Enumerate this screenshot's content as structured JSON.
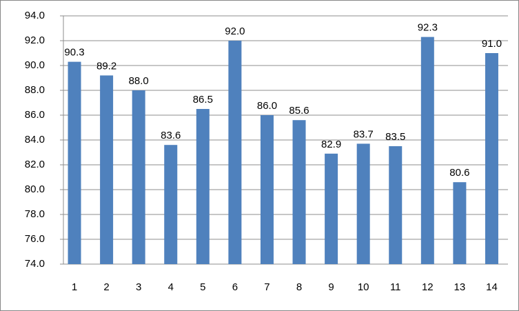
{
  "chart_data": {
    "type": "bar",
    "categories": [
      "1",
      "2",
      "3",
      "4",
      "5",
      "6",
      "7",
      "8",
      "9",
      "10",
      "11",
      "12",
      "13",
      "14"
    ],
    "values": [
      90.3,
      89.2,
      88.0,
      83.6,
      86.5,
      92.0,
      86.0,
      85.6,
      82.9,
      83.7,
      83.5,
      92.3,
      80.6,
      91.0
    ],
    "value_labels": [
      "90.3",
      "89.2",
      "88.0",
      "83.6",
      "86.5",
      "92.0",
      "86.0",
      "85.6",
      "82.9",
      "83.7",
      "83.5",
      "92.3",
      "80.6",
      "91.0"
    ],
    "color": "#4f81bd",
    "ylim": [
      74,
      94
    ],
    "yticks": [
      {
        "value": 74,
        "label": "74.0"
      },
      {
        "value": 76,
        "label": "76.0"
      },
      {
        "value": 78,
        "label": "78.0"
      },
      {
        "value": 80,
        "label": "80.0"
      },
      {
        "value": 82,
        "label": "82.0"
      },
      {
        "value": 84,
        "label": "84.0"
      },
      {
        "value": 86,
        "label": "86.0"
      },
      {
        "value": 88,
        "label": "88.0"
      },
      {
        "value": 90,
        "label": "90.0"
      },
      {
        "value": 92,
        "label": "92.0"
      },
      {
        "value": 94,
        "label": "94.0"
      }
    ],
    "grid": true
  }
}
